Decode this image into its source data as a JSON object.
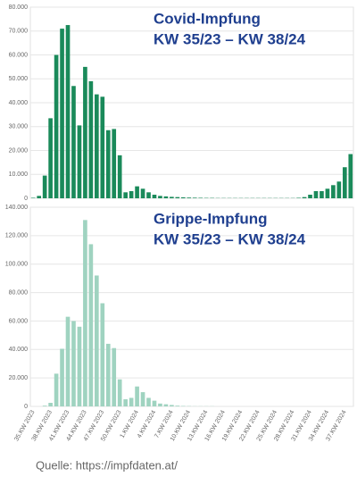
{
  "chart_data": [
    {
      "type": "bar",
      "title": "Covid-Impfung",
      "subtitle": "KW 35/23 – KW 38/24",
      "color": "#1a8a5a",
      "grid": true,
      "ylim": [
        0,
        80000
      ],
      "yticks": [
        0,
        {
          "value": 10000,
          "label": "10.000"
        },
        {
          "value": 20000,
          "label": "20.000"
        },
        {
          "value": 30000,
          "label": "30.000"
        },
        {
          "value": 40000,
          "label": "40.000"
        },
        {
          "value": 50000,
          "label": "50.000"
        },
        {
          "value": 60000,
          "label": "60.000"
        },
        {
          "value": 70000,
          "label": "70.000"
        },
        {
          "value": 80000,
          "label": "80.000"
        }
      ],
      "values": [
        200,
        1000,
        9500,
        33500,
        60000,
        71000,
        72500,
        47000,
        30500,
        55000,
        49000,
        43500,
        42500,
        28500,
        29000,
        18000,
        2500,
        3000,
        5000,
        4000,
        2500,
        1500,
        1000,
        800,
        600,
        500,
        400,
        300,
        250,
        200,
        150,
        150,
        100,
        100,
        100,
        100,
        100,
        100,
        100,
        100,
        100,
        100,
        100,
        100,
        100,
        100,
        200,
        500,
        1500,
        3000,
        3000,
        4000,
        5500,
        7000,
        13000,
        18500
      ]
    },
    {
      "type": "bar",
      "title": "Grippe-Impfung",
      "subtitle": "KW 35/23 – KW 38/24",
      "color": "#9fd3c0",
      "grid": true,
      "ylim": [
        0,
        140000
      ],
      "yticks": [
        0,
        {
          "value": 20000,
          "label": "20.000"
        },
        {
          "value": 40000,
          "label": "40.000"
        },
        {
          "value": 60000,
          "label": "60.000"
        },
        {
          "value": 80000,
          "label": "80.000"
        },
        {
          "value": 100000,
          "label": "100.000"
        },
        {
          "value": 120000,
          "label": "120.000"
        },
        {
          "value": 140000,
          "label": "140.000"
        }
      ],
      "categories": [
        "35.KW 2023",
        null,
        null,
        "38.KW 2023",
        null,
        null,
        "41.KW 2023",
        null,
        null,
        "44.KW 2023",
        null,
        null,
        "47.KW 2023",
        null,
        null,
        "50.KW 2023",
        null,
        null,
        "1.KW 2024",
        null,
        null,
        "4.KW 2024",
        null,
        null,
        "7.KW 2024",
        null,
        null,
        "10.KW 2024",
        null,
        null,
        "13.KW 2024",
        null,
        null,
        "16.KW 2024",
        null,
        null,
        "19.KW 2024",
        null,
        null,
        "22.KW 2024",
        null,
        null,
        "25.KW 2024",
        null,
        null,
        "28.KW 2024",
        null,
        null,
        "31.KW 2024",
        null,
        null,
        "34.KW 2024",
        null,
        null,
        "37.KW 2024",
        null
      ],
      "values": [
        0,
        0,
        500,
        2500,
        23000,
        40500,
        63000,
        60000,
        56000,
        131000,
        114000,
        92000,
        72500,
        44000,
        41000,
        19000,
        5000,
        6000,
        14000,
        10000,
        6000,
        4000,
        2000,
        1500,
        1000,
        500,
        300,
        200,
        100,
        100,
        100,
        100,
        0,
        0,
        0,
        0,
        0,
        0,
        0,
        0,
        0,
        0,
        0,
        0,
        0,
        0,
        0,
        0,
        0,
        0,
        0,
        0,
        0,
        0,
        0,
        0
      ]
    }
  ],
  "footer": "Quelle: https://impfdaten.at/"
}
